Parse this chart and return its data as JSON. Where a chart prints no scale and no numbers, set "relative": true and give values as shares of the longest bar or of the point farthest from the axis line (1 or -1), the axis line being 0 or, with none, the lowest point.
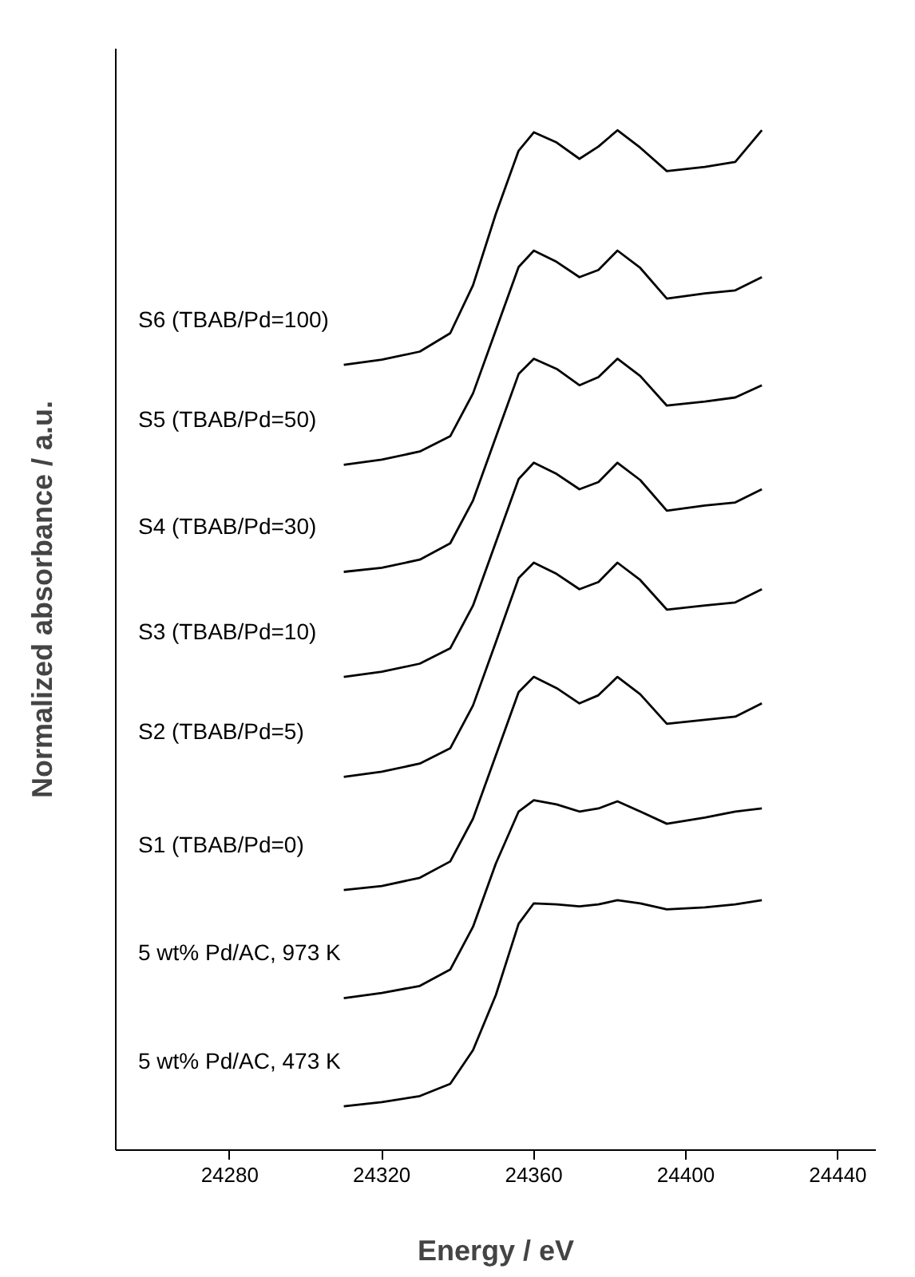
{
  "chart_data": {
    "type": "line",
    "relative": true,
    "xlabel": "Energy / eV",
    "ylabel": "Normalized absorbance / a.u.",
    "x": [
      24310,
      24320,
      24330,
      24338,
      24344,
      24350,
      24356,
      24360,
      24366,
      24372,
      24377,
      24382,
      24388,
      24395,
      24405,
      24413,
      24420
    ],
    "xlim": [
      24250,
      24450
    ],
    "xticks": [
      24280,
      24320,
      24360,
      24400,
      24440
    ],
    "grid": false,
    "marker": "none",
    "line_style": "solid",
    "tick_labels": "x",
    "series": [
      {
        "name": "5 wt% Pd/AC, 473 K",
        "color": "#000000",
        "values": [
          0.043,
          0.047,
          0.053,
          0.065,
          0.098,
          0.152,
          0.222,
          0.242,
          0.241,
          0.239,
          0.241,
          0.245,
          0.242,
          0.236,
          0.238,
          0.241,
          0.245
        ]
      },
      {
        "name": "5 wt% Pd/AC, 973 K",
        "color": "#000000",
        "values": [
          0.149,
          0.154,
          0.161,
          0.177,
          0.219,
          0.281,
          0.332,
          0.343,
          0.339,
          0.332,
          0.335,
          0.342,
          0.332,
          0.32,
          0.326,
          0.332,
          0.335
        ]
      },
      {
        "name": "S1 (TBAB/Pd=0)",
        "color": "#000000",
        "values": [
          0.255,
          0.259,
          0.267,
          0.283,
          0.325,
          0.387,
          0.449,
          0.464,
          0.453,
          0.438,
          0.446,
          0.464,
          0.447,
          0.418,
          0.422,
          0.425,
          0.438
        ]
      },
      {
        "name": "S2 (TBAB/Pd=5)",
        "color": "#000000",
        "values": [
          0.366,
          0.371,
          0.379,
          0.394,
          0.436,
          0.498,
          0.561,
          0.576,
          0.565,
          0.55,
          0.557,
          0.576,
          0.559,
          0.53,
          0.534,
          0.537,
          0.55
        ]
      },
      {
        "name": "S3 (TBAB/Pd=10)",
        "color": "#000000",
        "values": [
          0.464,
          0.469,
          0.477,
          0.492,
          0.534,
          0.596,
          0.658,
          0.674,
          0.663,
          0.648,
          0.655,
          0.674,
          0.657,
          0.627,
          0.632,
          0.635,
          0.648
        ]
      },
      {
        "name": "S4 (TBAB/Pd=30)",
        "color": "#000000",
        "values": [
          0.567,
          0.571,
          0.579,
          0.595,
          0.637,
          0.699,
          0.761,
          0.776,
          0.766,
          0.75,
          0.758,
          0.776,
          0.759,
          0.73,
          0.734,
          0.738,
          0.75
        ]
      },
      {
        "name": "S5 (TBAB/Pd=50)",
        "color": "#000000",
        "values": [
          0.672,
          0.677,
          0.685,
          0.7,
          0.742,
          0.804,
          0.866,
          0.882,
          0.871,
          0.856,
          0.863,
          0.882,
          0.865,
          0.835,
          0.84,
          0.843,
          0.856
        ]
      },
      {
        "name": "S6 (TBAB/Pd=100)",
        "color": "#000000",
        "values": [
          0.77,
          0.775,
          0.783,
          0.801,
          0.848,
          0.918,
          0.98,
          0.998,
          0.988,
          0.972,
          0.984,
          1.0,
          0.983,
          0.96,
          0.964,
          0.969,
          1.0
        ]
      }
    ]
  }
}
